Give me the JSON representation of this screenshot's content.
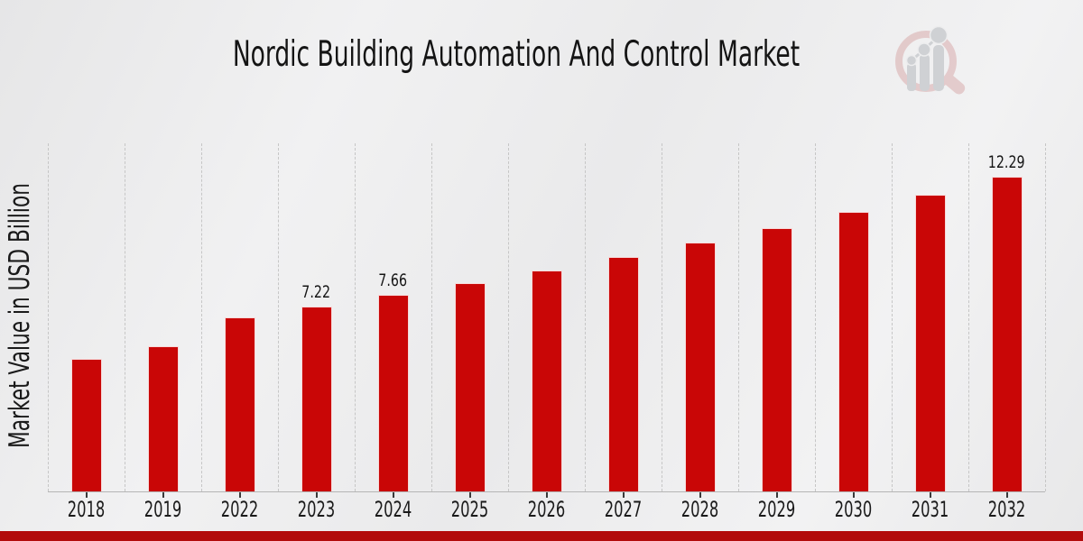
{
  "header": {
    "title": "Nordic Building Automation And Control Market"
  },
  "chart_data": {
    "type": "bar",
    "title": "Nordic Building Automation And Control Market",
    "xlabel": "",
    "ylabel": "Market Value in USD Billion",
    "categories": [
      "2018",
      "2019",
      "2022",
      "2023",
      "2024",
      "2025",
      "2026",
      "2027",
      "2028",
      "2029",
      "2030",
      "2031",
      "2032"
    ],
    "values": [
      5.16,
      5.66,
      6.81,
      7.22,
      7.66,
      8.13,
      8.62,
      9.15,
      9.7,
      10.29,
      10.92,
      11.58,
      12.29
    ],
    "data_labels": [
      "",
      "",
      "",
      "7.22",
      "7.66",
      "",
      "",
      "",
      "",
      "",
      "",
      "",
      "12.29"
    ],
    "bar_color": "#c90606",
    "label_color": "#161616",
    "tick_label_color": "#1a1a1a",
    "grid": {
      "vertical": true,
      "style": "dashed",
      "color": "#c6c6c6"
    },
    "axis_color": "#b5b5b5",
    "ylim": [
      0,
      13.59
    ],
    "legend": "none",
    "units": "USD Billion"
  },
  "watermark": {
    "icon": "magnifier-bar-chart-logo",
    "ring_color": "#cf8f8f",
    "bars_color": "#9aa0a6"
  },
  "footer": {
    "bar_color": "#b20b0b"
  }
}
